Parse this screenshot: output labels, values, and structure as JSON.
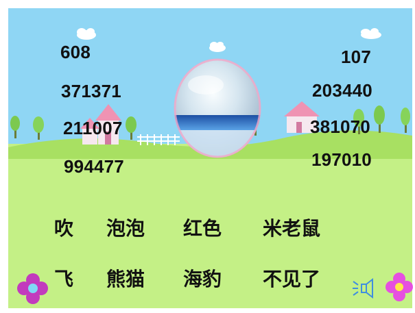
{
  "colors": {
    "sky": "#8fd6f4",
    "grass": "#c4f086",
    "hill": "#a8e062",
    "text": "#111111",
    "flower_left": "#c23bbd",
    "flower_right": "#e64fe0",
    "speaker": "#3f8ee0"
  },
  "numbers_left": [
    "608",
    "371371",
    "211007",
    "994477"
  ],
  "numbers_right": [
    "107",
    "203440",
    "381070",
    "197010"
  ],
  "words_row1": [
    "吹",
    "泡泡",
    "红色",
    "米老鼠"
  ],
  "words_row2": [
    "飞",
    "熊猫",
    "海豹",
    "不见了"
  ],
  "icons": {
    "bubble": "glass-bubble-icon",
    "speaker": "speaker-icon",
    "flower": "flower-icon",
    "house": "house-icon",
    "cloud": "cloud-icon",
    "tree": "tree-icon"
  }
}
